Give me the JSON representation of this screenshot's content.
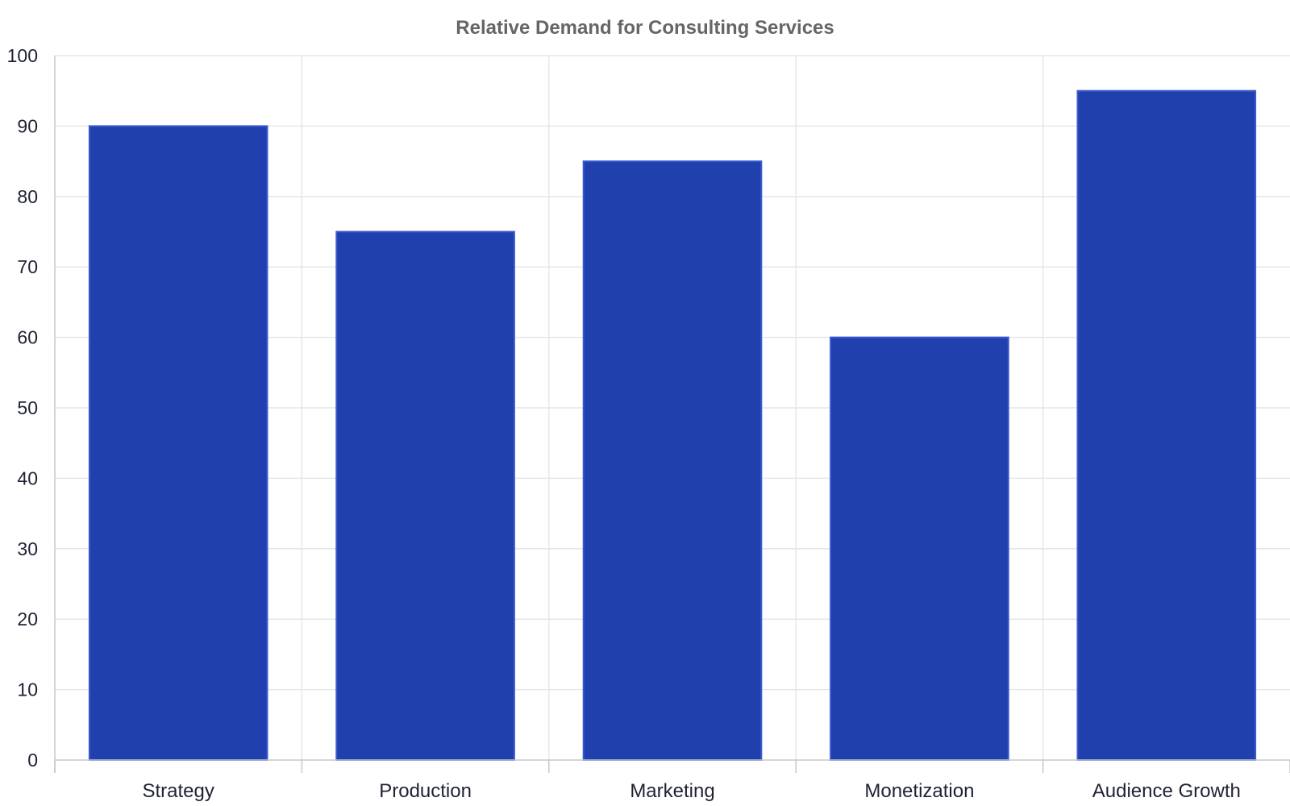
{
  "chart_data": {
    "type": "bar",
    "title": "Relative Demand for Consulting Services",
    "xlabel": "",
    "ylabel": "",
    "categories": [
      "Strategy",
      "Production",
      "Marketing",
      "Monetization",
      "Audience Growth"
    ],
    "values": [
      90,
      75,
      85,
      60,
      95
    ],
    "ylim": [
      0,
      100
    ],
    "yticks": [
      0,
      10,
      20,
      30,
      40,
      50,
      60,
      70,
      80,
      90,
      100
    ],
    "grid": true,
    "legend": "none",
    "colors": {
      "bar_fill": "#1f40ad",
      "bar_stroke": "#3a5ad0",
      "grid": "#e6e6e6"
    }
  }
}
